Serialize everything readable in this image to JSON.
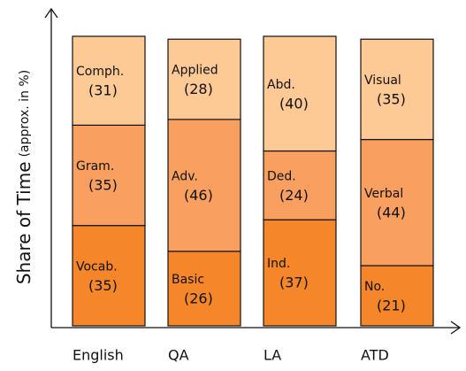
{
  "chart_data": {
    "type": "stacked_bar",
    "ylabel": "Share of Time",
    "ylabel_note": "(approx. in %)",
    "categories": [
      "English",
      "QA",
      "LA",
      "ATD"
    ],
    "ylim": [
      0,
      101
    ],
    "series": [
      {
        "color": "#f5862a",
        "labels": [
          "Vocab.",
          "Basic",
          "Ind.",
          "No."
        ],
        "values": [
          35,
          26,
          37,
          21
        ],
        "value_labels": [
          "(35)",
          "(26)",
          "(37)",
          "(21)"
        ]
      },
      {
        "color": "#f9a060",
        "labels": [
          "Gram.",
          "Adv.",
          "Ded.",
          "Verbal"
        ],
        "values": [
          35,
          46,
          24,
          44
        ],
        "value_labels": [
          "(35)",
          "(46)",
          "(24)",
          "(44)"
        ]
      },
      {
        "color": "#fdc995",
        "labels": [
          "Comph.",
          "Applied",
          "Abd.",
          "Visual"
        ],
        "values": [
          31,
          28,
          40,
          35
        ],
        "value_labels": [
          "(31)",
          "(28)",
          "(40)",
          "(35)"
        ]
      }
    ]
  }
}
